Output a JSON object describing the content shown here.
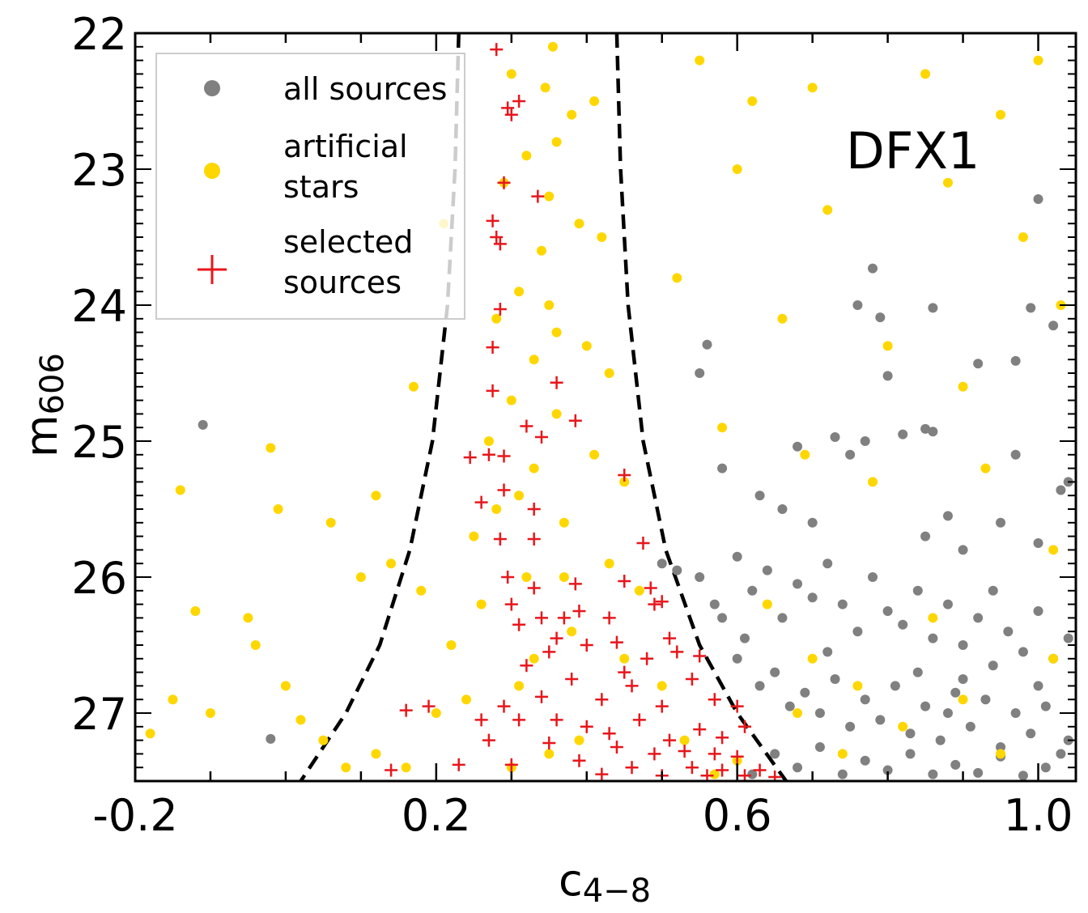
{
  "chart_data": {
    "type": "scatter",
    "title": "",
    "xlabel": "c",
    "xlabel_sub": "4−8",
    "ylabel": "m",
    "ylabel_sub": "606",
    "xlim": [
      -0.2,
      1.05
    ],
    "ylim": [
      27.5,
      22.0
    ],
    "y_inverted": true,
    "x_ticks": [
      -0.2,
      0.2,
      0.6,
      1.0
    ],
    "x_tick_labels": [
      "-0.2",
      "0.2",
      "0.6",
      "1.0"
    ],
    "y_ticks": [
      22,
      23,
      24,
      25,
      26,
      27
    ],
    "y_tick_labels": [
      "22",
      "23",
      "24",
      "25",
      "26",
      "27"
    ],
    "grid": false,
    "legend_position": "top-left",
    "annotation": "DFX1",
    "legend": [
      {
        "label": "all sources",
        "marker": "circle",
        "color": "#808080"
      },
      {
        "label": "artificial\nstars",
        "marker": "circle",
        "color": "#FFD700"
      },
      {
        "label": "selected\nsources",
        "marker": "plus",
        "color": "#E8161B"
      }
    ],
    "boundary_curves": {
      "style": "dashed",
      "color": "#000000",
      "left": {
        "x": [
          0.23,
          0.225,
          0.215,
          0.195,
          0.165,
          0.125,
          0.08,
          0.02
        ],
        "y": [
          22.0,
          23.0,
          24.0,
          25.0,
          25.8,
          26.5,
          27.0,
          27.5
        ]
      },
      "right": {
        "x": [
          0.44,
          0.445,
          0.455,
          0.475,
          0.505,
          0.55,
          0.6,
          0.665
        ],
        "y": [
          22.0,
          23.0,
          24.0,
          25.0,
          25.8,
          26.5,
          27.0,
          27.5
        ]
      }
    },
    "series": [
      {
        "name": "all sources",
        "color": "#808080",
        "points": [
          [
            -0.11,
            24.88
          ],
          [
            -0.02,
            27.19
          ],
          [
            0.78,
            23.73
          ],
          [
            0.79,
            24.09
          ],
          [
            0.76,
            24.0
          ],
          [
            0.86,
            24.02
          ],
          [
            0.97,
            24.41
          ],
          [
            0.99,
            24.02
          ],
          [
            1.0,
            23.22
          ],
          [
            1.02,
            24.15
          ],
          [
            0.55,
            24.5
          ],
          [
            0.56,
            24.29
          ],
          [
            0.58,
            25.2
          ],
          [
            0.68,
            25.04
          ],
          [
            0.73,
            24.97
          ],
          [
            0.75,
            25.1
          ],
          [
            0.77,
            25.0
          ],
          [
            0.8,
            24.52
          ],
          [
            0.82,
            24.95
          ],
          [
            0.85,
            24.91
          ],
          [
            0.86,
            24.93
          ],
          [
            0.92,
            24.43
          ],
          [
            0.97,
            25.1
          ],
          [
            1.03,
            25.36
          ],
          [
            1.04,
            25.3
          ],
          [
            0.5,
            25.9
          ],
          [
            0.52,
            25.95
          ],
          [
            0.55,
            26.0
          ],
          [
            0.57,
            26.2
          ],
          [
            0.6,
            25.85
          ],
          [
            0.62,
            26.1
          ],
          [
            0.64,
            25.95
          ],
          [
            0.66,
            26.3
          ],
          [
            0.68,
            26.05
          ],
          [
            0.7,
            26.15
          ],
          [
            0.72,
            25.9
          ],
          [
            0.74,
            26.2
          ],
          [
            0.76,
            26.4
          ],
          [
            0.78,
            26.0
          ],
          [
            0.8,
            26.25
          ],
          [
            0.82,
            26.35
          ],
          [
            0.84,
            26.1
          ],
          [
            0.86,
            26.45
          ],
          [
            0.88,
            26.2
          ],
          [
            0.9,
            26.5
          ],
          [
            0.92,
            26.3
          ],
          [
            0.94,
            26.1
          ],
          [
            0.96,
            26.4
          ],
          [
            0.98,
            26.55
          ],
          [
            1.0,
            26.25
          ],
          [
            1.02,
            26.6
          ],
          [
            1.04,
            26.45
          ],
          [
            0.6,
            26.6
          ],
          [
            0.63,
            26.8
          ],
          [
            0.65,
            26.7
          ],
          [
            0.67,
            26.95
          ],
          [
            0.69,
            26.85
          ],
          [
            0.71,
            27.0
          ],
          [
            0.73,
            26.75
          ],
          [
            0.75,
            27.1
          ],
          [
            0.77,
            26.9
          ],
          [
            0.79,
            27.05
          ],
          [
            0.81,
            26.8
          ],
          [
            0.83,
            27.15
          ],
          [
            0.85,
            26.95
          ],
          [
            0.87,
            27.2
          ],
          [
            0.89,
            26.85
          ],
          [
            0.91,
            27.1
          ],
          [
            0.93,
            26.9
          ],
          [
            0.95,
            27.25
          ],
          [
            0.97,
            27.0
          ],
          [
            0.99,
            27.15
          ],
          [
            1.01,
            26.95
          ],
          [
            1.03,
            27.3
          ],
          [
            0.65,
            27.3
          ],
          [
            0.68,
            27.4
          ],
          [
            0.71,
            27.25
          ],
          [
            0.74,
            27.45
          ],
          [
            0.77,
            27.35
          ],
          [
            0.8,
            27.42
          ],
          [
            0.83,
            27.3
          ],
          [
            0.86,
            27.45
          ],
          [
            0.89,
            27.38
          ],
          [
            0.92,
            27.44
          ],
          [
            0.95,
            27.32
          ],
          [
            0.98,
            27.46
          ],
          [
            1.01,
            27.4
          ],
          [
            1.04,
            27.2
          ],
          [
            0.62,
            27.45
          ],
          [
            0.88,
            27.0
          ],
          [
            0.84,
            26.7
          ],
          [
            0.9,
            26.75
          ],
          [
            0.94,
            26.65
          ],
          [
            1.0,
            26.8
          ],
          [
            0.72,
            26.55
          ],
          [
            0.58,
            26.3
          ],
          [
            0.61,
            26.45
          ],
          [
            0.7,
            25.6
          ],
          [
            0.66,
            25.5
          ],
          [
            0.85,
            25.7
          ],
          [
            0.9,
            25.8
          ],
          [
            0.95,
            25.6
          ],
          [
            1.0,
            25.75
          ],
          [
            0.63,
            25.4
          ],
          [
            0.88,
            25.55
          ]
        ]
      },
      {
        "name": "artificial stars",
        "color": "#FFD700",
        "points": [
          [
            0.355,
            22.1
          ],
          [
            0.345,
            22.4
          ],
          [
            0.36,
            22.8
          ],
          [
            0.35,
            23.2
          ],
          [
            0.34,
            23.6
          ],
          [
            0.35,
            24.0
          ],
          [
            0.33,
            24.4
          ],
          [
            0.36,
            24.8
          ],
          [
            0.33,
            25.2
          ],
          [
            0.37,
            25.6
          ],
          [
            0.32,
            26.0
          ],
          [
            0.38,
            26.4
          ],
          [
            0.31,
            26.8
          ],
          [
            0.39,
            27.2
          ],
          [
            0.3,
            27.4
          ],
          [
            0.3,
            22.3
          ],
          [
            0.41,
            22.5
          ],
          [
            0.29,
            23.1
          ],
          [
            0.42,
            23.5
          ],
          [
            0.28,
            24.1
          ],
          [
            0.43,
            24.5
          ],
          [
            0.27,
            25.0
          ],
          [
            0.45,
            25.3
          ],
          [
            0.25,
            25.7
          ],
          [
            0.47,
            26.1
          ],
          [
            0.22,
            26.5
          ],
          [
            0.5,
            26.8
          ],
          [
            0.2,
            27.0
          ],
          [
            0.53,
            27.2
          ],
          [
            0.16,
            27.4
          ],
          [
            0.57,
            27.45
          ],
          [
            0.12,
            27.3
          ],
          [
            0.6,
            27.35
          ],
          [
            0.24,
            26.9
          ],
          [
            0.45,
            26.6
          ],
          [
            0.26,
            26.2
          ],
          [
            0.43,
            25.9
          ],
          [
            0.28,
            25.5
          ],
          [
            0.41,
            25.1
          ],
          [
            0.3,
            24.7
          ],
          [
            0.4,
            24.3
          ],
          [
            0.31,
            23.9
          ],
          [
            0.39,
            23.4
          ],
          [
            0.32,
            22.9
          ],
          [
            0.38,
            22.6
          ],
          [
            0.55,
            22.2
          ],
          [
            0.62,
            22.5
          ],
          [
            0.7,
            22.4
          ],
          [
            0.85,
            22.3
          ],
          [
            0.95,
            22.6
          ],
          [
            1.0,
            22.2
          ],
          [
            0.6,
            23.0
          ],
          [
            0.72,
            23.3
          ],
          [
            0.88,
            23.1
          ],
          [
            0.98,
            23.5
          ],
          [
            0.52,
            23.8
          ],
          [
            0.66,
            24.1
          ],
          [
            0.8,
            24.3
          ],
          [
            0.9,
            24.6
          ],
          [
            1.03,
            24.0
          ],
          [
            0.58,
            24.9
          ],
          [
            0.69,
            25.1
          ],
          [
            0.78,
            25.3
          ],
          [
            0.93,
            25.2
          ],
          [
            1.02,
            25.8
          ],
          [
            0.21,
            23.4
          ],
          [
            0.17,
            24.6
          ],
          [
            -0.02,
            25.05
          ],
          [
            -0.14,
            25.36
          ],
          [
            -0.15,
            26.9
          ],
          [
            -0.12,
            26.25
          ],
          [
            -0.1,
            27.0
          ],
          [
            -0.18,
            27.15
          ],
          [
            -0.05,
            26.3
          ],
          [
            -0.04,
            26.5
          ],
          [
            0.0,
            26.8
          ],
          [
            0.02,
            27.05
          ],
          [
            0.05,
            27.2
          ],
          [
            0.08,
            27.4
          ],
          [
            -0.01,
            25.5
          ],
          [
            0.06,
            25.6
          ],
          [
            0.12,
            25.4
          ],
          [
            0.1,
            26.0
          ],
          [
            0.14,
            25.9
          ],
          [
            0.18,
            26.1
          ],
          [
            0.64,
            26.2
          ],
          [
            0.7,
            26.6
          ],
          [
            0.76,
            26.8
          ],
          [
            0.82,
            27.1
          ],
          [
            0.9,
            26.9
          ],
          [
            0.95,
            27.3
          ],
          [
            1.02,
            26.6
          ],
          [
            0.74,
            27.3
          ],
          [
            0.68,
            27.0
          ],
          [
            0.86,
            26.3
          ],
          [
            0.35,
            27.3
          ],
          [
            0.33,
            26.6
          ],
          [
            0.37,
            26.0
          ],
          [
            0.31,
            25.4
          ],
          [
            0.36,
            24.2
          ]
        ]
      },
      {
        "name": "selected sources",
        "color": "#E8161B",
        "points": [
          [
            0.28,
            22.12
          ],
          [
            0.295,
            22.55
          ],
          [
            0.31,
            22.5
          ],
          [
            0.3,
            22.6
          ],
          [
            0.29,
            23.1
          ],
          [
            0.335,
            23.2
          ],
          [
            0.275,
            23.38
          ],
          [
            0.28,
            23.5
          ],
          [
            0.285,
            23.55
          ],
          [
            0.285,
            24.03
          ],
          [
            0.275,
            24.31
          ],
          [
            0.275,
            24.63
          ],
          [
            0.36,
            24.57
          ],
          [
            0.32,
            24.89
          ],
          [
            0.34,
            24.97
          ],
          [
            0.385,
            24.85
          ],
          [
            0.245,
            25.12
          ],
          [
            0.27,
            25.1
          ],
          [
            0.29,
            25.11
          ],
          [
            0.26,
            25.45
          ],
          [
            0.45,
            25.25
          ],
          [
            0.29,
            25.36
          ],
          [
            0.33,
            25.5
          ],
          [
            0.285,
            25.72
          ],
          [
            0.33,
            25.72
          ],
          [
            0.475,
            25.75
          ],
          [
            0.295,
            26.0
          ],
          [
            0.33,
            26.08
          ],
          [
            0.385,
            26.05
          ],
          [
            0.45,
            26.03
          ],
          [
            0.485,
            26.08
          ],
          [
            0.3,
            26.2
          ],
          [
            0.31,
            26.35
          ],
          [
            0.34,
            26.3
          ],
          [
            0.37,
            26.3
          ],
          [
            0.39,
            26.25
          ],
          [
            0.43,
            26.3
          ],
          [
            0.49,
            26.2
          ],
          [
            0.5,
            26.18
          ],
          [
            0.36,
            26.45
          ],
          [
            0.4,
            26.5
          ],
          [
            0.44,
            26.48
          ],
          [
            0.51,
            26.45
          ],
          [
            0.32,
            26.65
          ],
          [
            0.35,
            26.55
          ],
          [
            0.48,
            26.6
          ],
          [
            0.52,
            26.55
          ],
          [
            0.55,
            26.58
          ],
          [
            0.34,
            26.88
          ],
          [
            0.38,
            26.75
          ],
          [
            0.42,
            26.9
          ],
          [
            0.46,
            26.8
          ],
          [
            0.5,
            26.95
          ],
          [
            0.54,
            26.75
          ],
          [
            0.57,
            26.9
          ],
          [
            0.6,
            26.95
          ],
          [
            0.16,
            26.98
          ],
          [
            0.19,
            26.95
          ],
          [
            0.26,
            27.05
          ],
          [
            0.29,
            26.95
          ],
          [
            0.31,
            27.05
          ],
          [
            0.36,
            27.05
          ],
          [
            0.4,
            27.1
          ],
          [
            0.43,
            27.15
          ],
          [
            0.47,
            27.05
          ],
          [
            0.51,
            27.2
          ],
          [
            0.55,
            27.12
          ],
          [
            0.58,
            27.18
          ],
          [
            0.61,
            27.1
          ],
          [
            0.27,
            27.2
          ],
          [
            0.35,
            27.22
          ],
          [
            0.44,
            27.25
          ],
          [
            0.49,
            27.3
          ],
          [
            0.53,
            27.28
          ],
          [
            0.57,
            27.3
          ],
          [
            0.6,
            27.32
          ],
          [
            0.23,
            27.38
          ],
          [
            0.3,
            27.38
          ],
          [
            0.39,
            27.35
          ],
          [
            0.46,
            27.4
          ],
          [
            0.54,
            27.4
          ],
          [
            0.58,
            27.42
          ],
          [
            0.63,
            27.42
          ],
          [
            0.14,
            27.42
          ],
          [
            0.42,
            27.45
          ],
          [
            0.5,
            27.46
          ],
          [
            0.56,
            27.46
          ],
          [
            0.61,
            27.46
          ],
          [
            0.65,
            27.47
          ],
          [
            0.45,
            26.7
          ]
        ]
      }
    ]
  }
}
